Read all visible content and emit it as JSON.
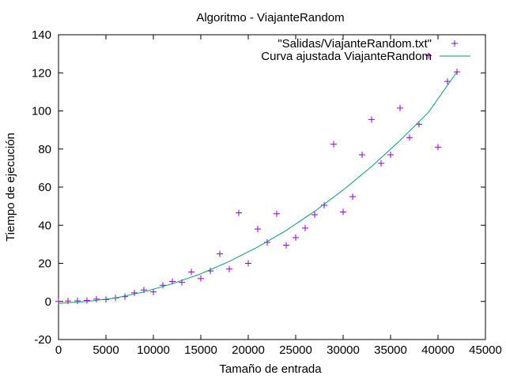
{
  "chart_data": {
    "type": "scatter",
    "title": "Algoritmo - ViajanteRandom",
    "xlabel": "Tamaño de entrada",
    "ylabel": "Tiempo de ejecución",
    "xlim": [
      0,
      45000
    ],
    "ylim": [
      -20,
      140
    ],
    "xticks": [
      0,
      5000,
      10000,
      15000,
      20000,
      25000,
      30000,
      35000,
      40000,
      45000
    ],
    "yticks": [
      -20,
      0,
      20,
      40,
      60,
      80,
      100,
      120,
      140
    ],
    "grid": false,
    "legend_position": "top-right",
    "series": [
      {
        "name": "\"Salidas/ViajanteRandom.txt\"",
        "kind": "points",
        "marker": "plus",
        "color": "#9400d3",
        "x": [
          0,
          1000,
          2000,
          3000,
          4000,
          5000,
          6000,
          7000,
          8000,
          9000,
          10000,
          11000,
          12000,
          13000,
          14000,
          15000,
          16000,
          17000,
          18000,
          19000,
          20000,
          21000,
          22000,
          23000,
          24000,
          25000,
          26000,
          27000,
          28000,
          29000,
          30000,
          31000,
          32000,
          33000,
          34000,
          35000,
          36000,
          37000,
          38000,
          39000,
          40000,
          41000,
          42000
        ],
        "y": [
          0,
          0.2,
          0.3,
          0.5,
          1.2,
          1.0,
          1.8,
          2.5,
          4.5,
          6.0,
          5.0,
          8.5,
          10.5,
          10.0,
          15.5,
          12.0,
          16.0,
          25.0,
          17.0,
          46.5,
          20.0,
          38.0,
          31.0,
          46.0,
          29.5,
          33.5,
          38.5,
          45.5,
          50.5,
          82.5,
          47.0,
          55.0,
          77.0,
          95.5,
          72.5,
          77.0,
          101.5,
          86.0,
          93.0,
          129.0,
          81.0,
          115.5,
          120.5
        ]
      },
      {
        "name": "Curva ajustada ViajanteRandom",
        "kind": "line",
        "color": "#009e73",
        "x": [
          0,
          3000,
          6000,
          9000,
          12000,
          15000,
          18000,
          21000,
          24000,
          27000,
          30000,
          33000,
          36000,
          39000,
          42000
        ],
        "y": [
          -1.0,
          0.0,
          1.8,
          5.0,
          9.3,
          14.5,
          21.0,
          28.6,
          37.3,
          47.3,
          58.5,
          70.8,
          84.5,
          99.3,
          120.5
        ]
      }
    ]
  }
}
